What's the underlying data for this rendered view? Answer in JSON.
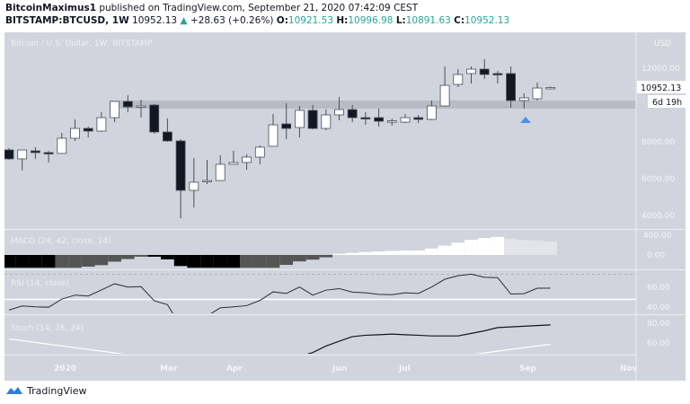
{
  "header": {
    "author": "BitcoinMaximus1",
    "published_text": "published on TradingView.com, September 21, 2020 07:42:09 CEST",
    "symbol": "BITSTAMP:BTCUSD, 1W",
    "last": "10952.13",
    "change": "+28.63 (+0.26%)",
    "o_label": "O:",
    "o": "10921.53",
    "h_label": "H:",
    "h": "10996.98",
    "l_label": "L:",
    "l": "10891.63",
    "c_label": "C:",
    "c": "10952.13",
    "up_icon": "triangle-up-icon"
  },
  "chart": {
    "title": "Bitcoin / U.S. Dollar, 1W, BITSTAMP",
    "currency": "USD",
    "price_ticks": [
      "12000.00",
      "8000.00",
      "6000.00",
      "4000.00"
    ],
    "last_price_label": "10952.13",
    "countdown": "6d 19h",
    "time_labels": [
      "2020",
      "Mar",
      "Apr",
      "Jun",
      "Jul",
      "Sep",
      "Nov"
    ],
    "marker": "blue-triangle-up",
    "colors": {
      "background": "#d1d4dc",
      "up": "#ffffff",
      "down": "#131722",
      "band": "#b8bbc3",
      "marker": "#4a8ef0"
    }
  },
  "macd": {
    "label": "MACD (24, 42, close, 24)",
    "ticks": [
      "400.00",
      "0.00"
    ]
  },
  "rsi": {
    "label": "RSI (14, close)",
    "ticks": [
      "60.00",
      "40.00"
    ]
  },
  "stoch": {
    "label": "Stoch (14, 28, 24)",
    "ticks": [
      "80.00",
      "60.00"
    ]
  },
  "chart_data": [
    {
      "type": "candlestick",
      "title": "Bitcoin / U.S. Dollar, 1W, BITSTAMP",
      "ylabel": "USD",
      "ylim": [
        3500,
        12900
      ],
      "resistance_band": [
        9760,
        10200
      ],
      "ohlc": [
        [
          7560,
          7660,
          7025,
          7075
        ],
        [
          7075,
          7560,
          6440,
          7560
        ],
        [
          7510,
          7710,
          7070,
          7415
        ],
        [
          7415,
          7510,
          6880,
          7400
        ],
        [
          7370,
          8490,
          7370,
          8195
        ],
        [
          8195,
          9220,
          8050,
          8730
        ],
        [
          8730,
          8830,
          8245,
          8585
        ],
        [
          8585,
          9610,
          8535,
          9315
        ],
        [
          9315,
          10195,
          9070,
          10195
        ],
        [
          10195,
          10535,
          9610,
          9900
        ],
        [
          9900,
          10290,
          9315,
          9950
        ],
        [
          10000,
          10050,
          8440,
          8535
        ],
        [
          8535,
          9270,
          8000,
          8050
        ],
        [
          8050,
          8150,
          3850,
          5365
        ],
        [
          5365,
          7120,
          4440,
          5805
        ],
        [
          5850,
          7025,
          5710,
          5900
        ],
        [
          5900,
          7270,
          5900,
          6780
        ],
        [
          6780,
          7510,
          6780,
          6880
        ],
        [
          6880,
          7320,
          6490,
          7170
        ],
        [
          7170,
          7800,
          6780,
          7710
        ],
        [
          7760,
          9510,
          7760,
          8925
        ],
        [
          8975,
          10100,
          8150,
          8730
        ],
        [
          8780,
          9950,
          8245,
          9710
        ],
        [
          9710,
          10000,
          8680,
          8730
        ],
        [
          8730,
          9755,
          8635,
          9465
        ],
        [
          9465,
          10440,
          9170,
          9755
        ],
        [
          9755,
          10000,
          9070,
          9315
        ],
        [
          9315,
          9610,
          8925,
          9290
        ],
        [
          9315,
          9805,
          8830,
          9120
        ],
        [
          9120,
          9270,
          8880,
          9140
        ],
        [
          9070,
          9510,
          9020,
          9315
        ],
        [
          9315,
          9465,
          9020,
          9220
        ],
        [
          9220,
          10245,
          9170,
          9950
        ],
        [
          9950,
          12100,
          9950,
          11070
        ],
        [
          11120,
          11950,
          10975,
          11660
        ],
        [
          11710,
          12100,
          11170,
          11950
        ],
        [
          11950,
          12490,
          11415,
          11660
        ],
        [
          11710,
          11850,
          11170,
          11660
        ],
        [
          11710,
          12100,
          9855,
          10245
        ],
        [
          10245,
          10635,
          9805,
          10390
        ],
        [
          10340,
          11220,
          10245,
          10925
        ],
        [
          10921.53,
          10996.98,
          10891.63,
          10952.13
        ]
      ]
    },
    {
      "type": "bar",
      "title": "MACD (24, 42, close, 24)",
      "values": [
        -220,
        -220,
        -220,
        -220,
        -220,
        -220,
        -200,
        -175,
        -115,
        -70,
        -30,
        -30,
        -75,
        -190,
        -220,
        -220,
        -220,
        -220,
        -220,
        -220,
        -220,
        -170,
        -110,
        -80,
        -40,
        20,
        35,
        50,
        60,
        70,
        75,
        75,
        110,
        160,
        210,
        260,
        290,
        310,
        275,
        255,
        245,
        230
      ],
      "colors": [
        "#000000",
        "#000000",
        "#000000",
        "#000000",
        "#555555",
        "#555555",
        "#555555",
        "#555555",
        "#555555",
        "#555555",
        "#555555",
        "#000000",
        "#000000",
        "#000000",
        "#000000",
        "#000000",
        "#000000",
        "#000000",
        "#555555",
        "#555555",
        "#555555",
        "#555555",
        "#555555",
        "#555555",
        "#555555",
        "#ffffff",
        "#ffffff",
        "#ffffff",
        "#ffffff",
        "#ffffff",
        "#ffffff",
        "#ffffff",
        "#ffffff",
        "#ffffff",
        "#ffffff",
        "#ffffff",
        "#ffffff",
        "#ffffff",
        "#e4e5ea",
        "#e4e5ea",
        "#e4e5ea",
        "#e4e5ea"
      ]
    },
    {
      "type": "line",
      "title": "RSI (14, close)",
      "ylim": [
        36.8,
        72.6
      ],
      "levels": [
        70,
        50
      ],
      "values": [
        42.5,
        45.7,
        45,
        44.7,
        50.9,
        54,
        53.3,
        58,
        62.7,
        60.2,
        60.5,
        49.6,
        46.7,
        30,
        38,
        38,
        44.2,
        45,
        45.9,
        49.9,
        56.5,
        55.3,
        60.2,
        54,
        57.8,
        59,
        56.3,
        55.8,
        54.6,
        54.3,
        55.8,
        55.3,
        60.2,
        66.2,
        68.9,
        70.1,
        67.7,
        67.4,
        54.8,
        55.1,
        59.3,
        59.3
      ]
    },
    {
      "type": "line",
      "title": "Stoch (14, 28, 24)",
      "ylim": [
        50,
        80
      ],
      "series": [
        {
          "color": "#131722",
          "values": [
            null,
            null,
            null,
            null,
            null,
            null,
            null,
            null,
            null,
            null,
            null,
            null,
            null,
            null,
            null,
            null,
            null,
            null,
            null,
            null,
            null,
            null,
            50,
            52.9,
            57.7,
            61.3,
            64.7,
            65.7,
            66.1,
            66.6,
            66.1,
            65.7,
            65.2,
            65.2,
            65.2,
            67.1,
            69,
            71.4,
            71.9,
            72.4,
            72.9,
            73.4
          ]
        },
        {
          "color": "#ffffff",
          "values": [
            63,
            61.7,
            60.4,
            59.1,
            57.8,
            56.5,
            55.2,
            53.9,
            52.6,
            51.3,
            50,
            null,
            null,
            null,
            null,
            null,
            null,
            null,
            null,
            null,
            null,
            null,
            null,
            null,
            null,
            null,
            null,
            null,
            null,
            null,
            null,
            null,
            null,
            null,
            50,
            51.3,
            52.6,
            53.9,
            55.2,
            56.5,
            57.8,
            59
          ]
        }
      ]
    }
  ]
}
